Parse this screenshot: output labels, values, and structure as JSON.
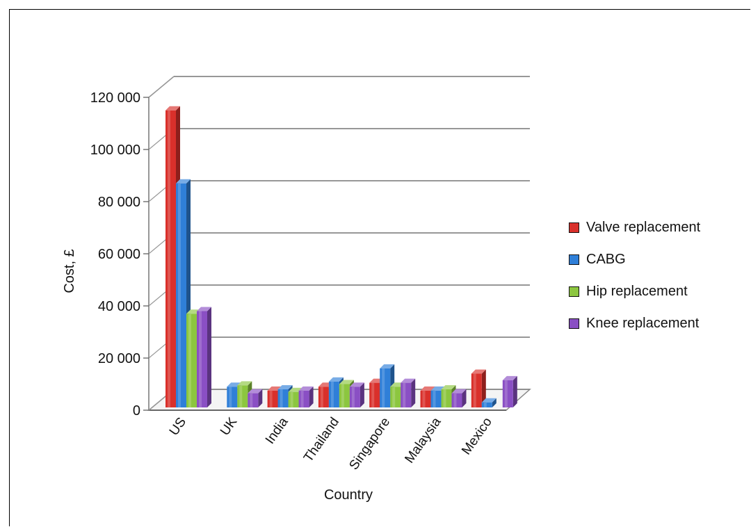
{
  "chart_data": {
    "type": "bar",
    "style": "3d-clustered-column",
    "xlabel": "Country",
    "ylabel": "Cost, £",
    "ylim": [
      0,
      120000
    ],
    "yticks": [
      0,
      20000,
      40000,
      60000,
      80000,
      100000,
      120000
    ],
    "ytick_labels": [
      "0",
      "20 000",
      "40 000",
      "60 000",
      "80 000",
      "100 000",
      "120 000"
    ],
    "grid": true,
    "legend_position": "right",
    "categories": [
      "US",
      "UK",
      "India",
      "Thailand",
      "Singapore",
      "Malaysia",
      "Mexico"
    ],
    "series": [
      {
        "name": "Valve replacement",
        "color": "#d9302b",
        "values": [
          115000,
          0,
          7500,
          9000,
          10500,
          7500,
          14000
        ]
      },
      {
        "name": "CABG",
        "color": "#2f7fd8",
        "values": [
          87000,
          9000,
          8000,
          11000,
          16000,
          7500,
          3000
        ]
      },
      {
        "name": "Hip replacement",
        "color": "#8cc63f",
        "values": [
          37000,
          9500,
          7000,
          10000,
          9000,
          8000,
          0
        ]
      },
      {
        "name": "Knee replacement",
        "color": "#8a4fc4",
        "values": [
          38000,
          6500,
          7500,
          9000,
          10500,
          6500,
          11500
        ]
      }
    ]
  }
}
